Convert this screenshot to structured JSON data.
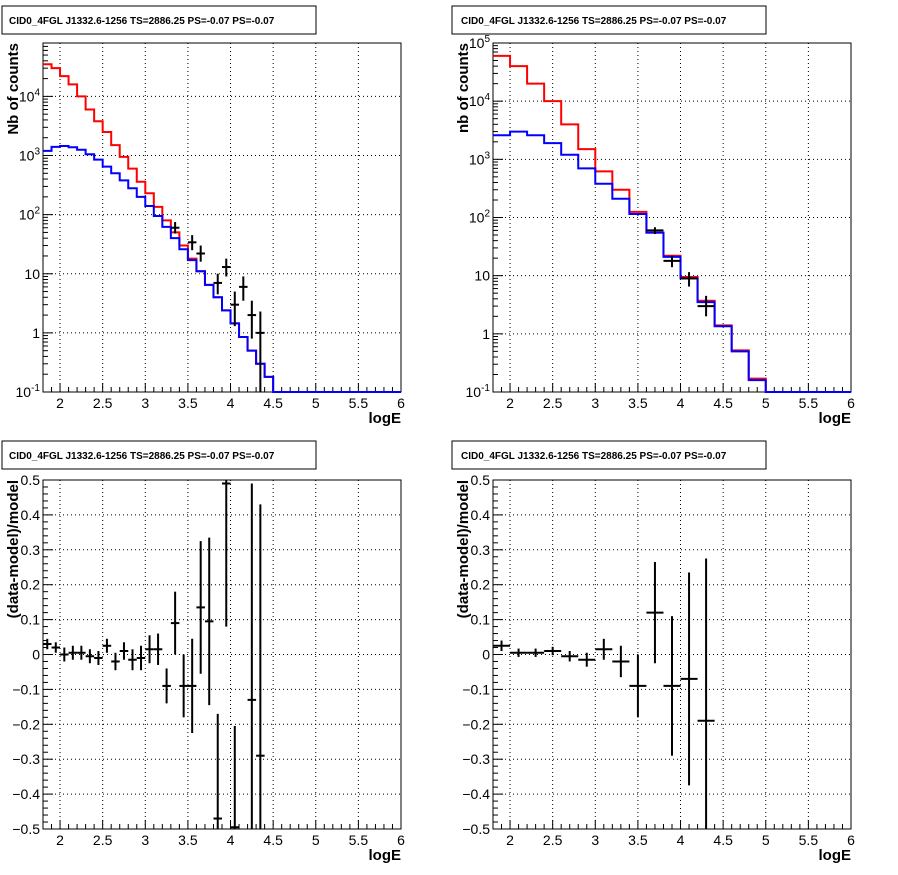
{
  "chart_data": [
    {
      "type": "line",
      "title": "CID0_4FGL J1332.6-1256 TS=2886.25 PS=-0.07 PS=-0.07",
      "xlabel": "logE",
      "ylabel": "Nb of counts",
      "xlim": [
        1.8,
        6.0
      ],
      "ylim": [
        0.1,
        80000
      ],
      "yscale": "log",
      "grid": true,
      "x_tick_labels": [
        "2",
        "2.5",
        "3",
        "3.5",
        "4",
        "4.5",
        "5",
        "5.5",
        "6"
      ],
      "y_tick_labels": [
        "10^-1",
        "1",
        "10",
        "10^2",
        "10^3",
        "10^4"
      ],
      "bin_edges": [
        1.8,
        1.9,
        2.0,
        2.1,
        2.2,
        2.3,
        2.4,
        2.5,
        2.6,
        2.7,
        2.8,
        2.9,
        3.0,
        3.1,
        3.2,
        3.3,
        3.4,
        3.5,
        3.6,
        3.7,
        3.8,
        3.9,
        4.0,
        4.1,
        4.2,
        4.3,
        4.4,
        4.5,
        4.6,
        4.7,
        4.8,
        4.9,
        5.0,
        5.1,
        5.2,
        5.3,
        5.4,
        5.5,
        5.6,
        5.7,
        5.8,
        5.9,
        6.0
      ],
      "series": [
        {
          "color": "#ff0000",
          "style": "step",
          "values": [
            35000,
            30000,
            22000,
            16000,
            10000,
            6000,
            3800,
            2500,
            1500,
            950,
            600,
            360,
            230,
            135,
            80,
            50,
            30,
            18,
            11,
            6.5,
            4,
            2.4,
            1.45,
            0.85,
            0.5,
            0.3,
            0.18,
            0.1,
            0.1,
            0.1,
            0.1,
            0.1,
            0.1,
            0.1,
            0.1,
            0.1,
            0.1,
            0.1,
            0.1,
            0.1,
            0.1,
            0.1
          ]
        },
        {
          "color": "#0000ff",
          "style": "step",
          "values": [
            1200,
            1400,
            1450,
            1380,
            1250,
            1050,
            850,
            650,
            500,
            380,
            280,
            200,
            140,
            95,
            62,
            40,
            26,
            17,
            11,
            6.5,
            4,
            2.4,
            1.45,
            0.85,
            0.5,
            0.3,
            0.18,
            0.1,
            0.1,
            0.1,
            0.1,
            0.1,
            0.1,
            0.1,
            0.1,
            0.1,
            0.1,
            0.1,
            0.1,
            0.1,
            0.1,
            0.1
          ]
        },
        {
          "color": "#000000",
          "style": "errorbar",
          "points": [
            {
              "x": 3.35,
              "y": 60,
              "lo": 48,
              "hi": 75
            },
            {
              "x": 3.55,
              "y": 34,
              "lo": 25,
              "hi": 45
            },
            {
              "x": 3.65,
              "y": 22,
              "lo": 16,
              "hi": 30
            },
            {
              "x": 3.85,
              "y": 7,
              "lo": 4.5,
              "hi": 10
            },
            {
              "x": 3.95,
              "y": 13,
              "lo": 9,
              "hi": 18
            },
            {
              "x": 4.05,
              "y": 3,
              "lo": 1.3,
              "hi": 5
            },
            {
              "x": 4.15,
              "y": 6,
              "lo": 3.5,
              "hi": 9
            },
            {
              "x": 4.25,
              "y": 2,
              "lo": 0.8,
              "hi": 3.5
            },
            {
              "x": 4.35,
              "y": 1,
              "lo": 0.1,
              "hi": 2.3
            }
          ]
        }
      ]
    },
    {
      "type": "line",
      "title": "CID0_4FGL J1332.6-1256 TS=2886.25 PS=-0.07 PS=-0.07",
      "xlabel": "logE",
      "ylabel": "nb of counts",
      "xlim": [
        1.8,
        6.0
      ],
      "ylim": [
        0.1,
        100000
      ],
      "yscale": "log",
      "grid": true,
      "x_tick_labels": [
        "2",
        "2.5",
        "3",
        "3.5",
        "4",
        "4.5",
        "5",
        "5.5",
        "6"
      ],
      "y_tick_labels": [
        "10^-1",
        "1",
        "10",
        "10^2",
        "10^3",
        "10^4",
        "10^5"
      ],
      "bin_edges": [
        1.8,
        2.0,
        2.2,
        2.4,
        2.6,
        2.8,
        3.0,
        3.2,
        3.4,
        3.6,
        3.8,
        4.0,
        4.2,
        4.4,
        4.6,
        4.8,
        5.0,
        5.2,
        5.4,
        5.6,
        5.8,
        6.0
      ],
      "series": [
        {
          "color": "#ff0000",
          "style": "step",
          "values": [
            60000,
            40000,
            20000,
            10000,
            4000,
            1500,
            620,
            300,
            125,
            55,
            22,
            9.5,
            3.7,
            1.4,
            0.52,
            0.17,
            0.1,
            0.1,
            0.1,
            0.1,
            0.1
          ]
        },
        {
          "color": "#0000ff",
          "style": "step",
          "values": [
            2600,
            3000,
            2600,
            1900,
            1200,
            700,
            380,
            210,
            115,
            55,
            21,
            9,
            3.5,
            1.35,
            0.5,
            0.16,
            0.1,
            0.1,
            0.1,
            0.1,
            0.1
          ]
        },
        {
          "color": "#000000",
          "style": "errorbar",
          "points": [
            {
              "x": 3.7,
              "y": 60,
              "lo": 52,
              "hi": 68
            },
            {
              "x": 3.9,
              "y": 18,
              "lo": 14,
              "hi": 22
            },
            {
              "x": 4.1,
              "y": 9,
              "lo": 6.5,
              "hi": 11.5
            },
            {
              "x": 4.3,
              "y": 3,
              "lo": 2,
              "hi": 4.5
            }
          ]
        }
      ]
    },
    {
      "type": "scatter",
      "title": "CID0_4FGL J1332.6-1256 TS=2886.25 PS=-0.07 PS=-0.07",
      "xlabel": "logE",
      "ylabel": "(data-model)/model",
      "xlim": [
        1.8,
        6.0
      ],
      "ylim": [
        -0.5,
        0.5
      ],
      "grid": true,
      "x_tick_labels": [
        "2",
        "2.5",
        "3",
        "3.5",
        "4",
        "4.5",
        "5",
        "5.5",
        "6"
      ],
      "y_tick_labels": [
        "−0.5",
        "−0.4",
        "−0.3",
        "−0.2",
        "−0.1",
        "0",
        "0.1",
        "0.2",
        "0.3",
        "0.4",
        "0.5"
      ],
      "half_width": 0.05,
      "points": [
        {
          "x": 1.85,
          "y": 0.03,
          "e": 0.015
        },
        {
          "x": 1.95,
          "y": 0.02,
          "e": 0.015
        },
        {
          "x": 2.05,
          "y": 0.0,
          "e": 0.02
        },
        {
          "x": 2.15,
          "y": 0.005,
          "e": 0.02
        },
        {
          "x": 2.25,
          "y": 0.005,
          "e": 0.02
        },
        {
          "x": 2.35,
          "y": -0.005,
          "e": 0.02
        },
        {
          "x": 2.45,
          "y": -0.01,
          "e": 0.02
        },
        {
          "x": 2.55,
          "y": 0.025,
          "e": 0.02
        },
        {
          "x": 2.65,
          "y": -0.02,
          "e": 0.025
        },
        {
          "x": 2.75,
          "y": 0.01,
          "e": 0.025
        },
        {
          "x": 2.85,
          "y": -0.015,
          "e": 0.03
        },
        {
          "x": 2.95,
          "y": -0.01,
          "e": 0.035
        },
        {
          "x": 3.05,
          "y": 0.015,
          "e": 0.04
        },
        {
          "x": 3.15,
          "y": 0.015,
          "e": 0.045
        },
        {
          "x": 3.25,
          "y": -0.09,
          "e": 0.05
        },
        {
          "x": 3.35,
          "y": 0.09,
          "e": 0.09
        },
        {
          "x": 3.45,
          "y": -0.09,
          "e": 0.09
        },
        {
          "x": 3.55,
          "y": -0.09,
          "e": 0.135
        },
        {
          "x": 3.65,
          "y": 0.135,
          "e": 0.19
        },
        {
          "x": 3.75,
          "y": 0.095,
          "e": 0.24
        },
        {
          "x": 3.85,
          "y": -0.47,
          "e": 0.3
        },
        {
          "x": 3.95,
          "y": 0.49,
          "e": 0.41
        },
        {
          "x": 4.05,
          "y": -0.495,
          "e": 0.29
        },
        {
          "x": 4.25,
          "y": -0.13,
          "e": 0.62
        },
        {
          "x": 4.35,
          "y": -0.29,
          "e": 0.72
        }
      ]
    },
    {
      "type": "scatter",
      "title": "CID0_4FGL J1332.6-1256 TS=2886.25 PS=-0.07 PS=-0.07",
      "xlabel": "logE",
      "ylabel": "(data-model)/model",
      "xlim": [
        1.8,
        6.0
      ],
      "ylim": [
        -0.5,
        0.5
      ],
      "grid": true,
      "x_tick_labels": [
        "2",
        "2.5",
        "3",
        "3.5",
        "4",
        "4.5",
        "5",
        "5.5",
        "6"
      ],
      "y_tick_labels": [
        "−0.5",
        "−0.4",
        "−0.3",
        "−0.2",
        "−0.1",
        "0",
        "0.1",
        "0.2",
        "0.3",
        "0.4",
        "0.5"
      ],
      "half_width": 0.1,
      "points": [
        {
          "x": 1.9,
          "y": 0.025,
          "e": 0.015
        },
        {
          "x": 2.1,
          "y": 0.005,
          "e": 0.012
        },
        {
          "x": 2.3,
          "y": 0.005,
          "e": 0.012
        },
        {
          "x": 2.5,
          "y": 0.01,
          "e": 0.012
        },
        {
          "x": 2.7,
          "y": -0.005,
          "e": 0.015
        },
        {
          "x": 2.9,
          "y": -0.015,
          "e": 0.02
        },
        {
          "x": 3.1,
          "y": 0.015,
          "e": 0.03
        },
        {
          "x": 3.3,
          "y": -0.02,
          "e": 0.045
        },
        {
          "x": 3.5,
          "y": -0.09,
          "e": 0.09
        },
        {
          "x": 3.7,
          "y": 0.12,
          "e": 0.145
        },
        {
          "x": 3.9,
          "y": -0.09,
          "e": 0.2
        },
        {
          "x": 4.1,
          "y": -0.07,
          "e": 0.305
        },
        {
          "x": 4.3,
          "y": -0.19,
          "e": 0.465
        }
      ]
    }
  ]
}
